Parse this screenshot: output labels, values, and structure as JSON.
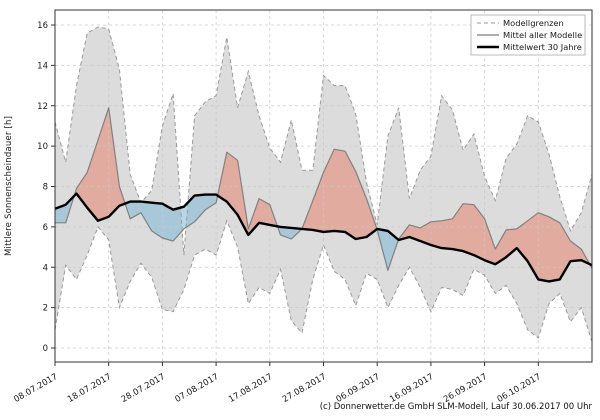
{
  "figure": {
    "ylabel": "Mittlere Sonnenscheindauer [h]",
    "caption": "(c) Donnerwetter.de GmbH SLM-Modell, Lauf 30.06.2017 00 Uhr"
  },
  "legend": {
    "position": "top-right",
    "items": [
      {
        "label": "Modellgrenzen",
        "style": "dashed-gray"
      },
      {
        "label": "Mittel aller Modelle",
        "style": "solid-gray"
      },
      {
        "label": "Mittelwert 30 Jahre",
        "style": "solid-black-thick"
      }
    ]
  },
  "colors": {
    "band_fill": "#dcdcdc",
    "band_edge": "#999999",
    "model_mean_line": "#808080",
    "mean30_line": "#000000",
    "above_fill": "#e8846e",
    "below_fill": "#7db8d8",
    "grid": "#c8c8c8",
    "axis": "#333333",
    "text": "#1a1a1a",
    "legend_border": "#bbbbbb",
    "legend_bg": "#ffffff"
  },
  "chart_data": {
    "type": "line",
    "title": "",
    "xlabel": "",
    "ylabel": "Mittlere Sonnenscheindauer [h]",
    "ylim": [
      0,
      16
    ],
    "grid": true,
    "grid_style": "dashed",
    "legend_position": "top-right",
    "x_start_date": "08.07.2017",
    "x_step_days": 2,
    "x_days": [
      0,
      2,
      4,
      6,
      8,
      10,
      12,
      14,
      16,
      18,
      20,
      22,
      24,
      26,
      28,
      30,
      32,
      34,
      36,
      38,
      40,
      42,
      44,
      46,
      48,
      50,
      52,
      54,
      56,
      58,
      60,
      62,
      64,
      66,
      68,
      70,
      72,
      74,
      76,
      78,
      80,
      82,
      84,
      86,
      88,
      90,
      92,
      94,
      96,
      98,
      100
    ],
    "x_tick_days": [
      0,
      10,
      20,
      30,
      40,
      50,
      60,
      70,
      80,
      90
    ],
    "x_tick_labels": [
      "08.07.2017",
      "18.07.2017",
      "28.07.2017",
      "07.08.2017",
      "17.08.2017",
      "27.08.2017",
      "06.09.2017",
      "16.09.2017",
      "26.09.2017",
      "06.10.2017"
    ],
    "y_ticks": [
      0,
      2,
      4,
      6,
      8,
      10,
      12,
      14,
      16
    ],
    "series": [
      {
        "name": "Modellgrenzen obere Grenze",
        "role": "band_upper",
        "values": [
          11.2,
          9.2,
          13.0,
          15.6,
          15.9,
          15.8,
          13.8,
          8.6,
          7.2,
          7.8,
          11.0,
          12.6,
          4.6,
          11.5,
          12.2,
          12.5,
          15.4,
          11.9,
          13.7,
          11.5,
          9.9,
          9.2,
          11.3,
          8.8,
          8.8,
          13.5,
          13.0,
          13.0,
          11.6,
          8.2,
          6.1,
          10.5,
          11.9,
          7.4,
          8.8,
          9.5,
          12.5,
          11.8,
          9.8,
          10.6,
          8.5,
          7.3,
          9.4,
          10.1,
          11.5,
          11.2,
          9.6,
          7.5,
          5.8,
          6.7,
          8.6
        ]
      },
      {
        "name": "Modellgrenzen untere Grenze",
        "role": "band_lower",
        "values": [
          0.9,
          4.1,
          3.4,
          4.6,
          6.0,
          5.35,
          2.0,
          3.3,
          4.2,
          3.5,
          1.9,
          1.8,
          2.9,
          4.6,
          4.9,
          4.6,
          6.3,
          5.0,
          2.2,
          3.0,
          2.7,
          3.9,
          1.35,
          0.75,
          3.4,
          5.1,
          3.8,
          3.4,
          2.1,
          3.7,
          3.4,
          2.0,
          3.1,
          4.0,
          3.0,
          1.8,
          3.0,
          2.9,
          2.6,
          3.9,
          3.6,
          2.7,
          3.1,
          2.2,
          0.9,
          0.5,
          2.2,
          2.7,
          1.3,
          2.0,
          0.3
        ]
      },
      {
        "name": "Mittel aller Modelle",
        "role": "model_mean",
        "values": [
          6.2,
          6.2,
          7.9,
          8.7,
          10.3,
          11.9,
          8.0,
          6.4,
          6.7,
          5.8,
          5.45,
          5.3,
          5.9,
          6.25,
          6.85,
          7.2,
          9.7,
          9.3,
          5.9,
          7.4,
          7.1,
          5.6,
          5.4,
          5.9,
          7.3,
          8.7,
          9.85,
          9.75,
          8.75,
          7.4,
          5.85,
          3.85,
          5.4,
          6.1,
          5.95,
          6.25,
          6.3,
          6.4,
          7.15,
          7.1,
          6.4,
          4.9,
          5.85,
          5.9,
          6.3,
          6.7,
          6.5,
          6.2,
          5.3,
          4.9,
          3.95
        ]
      },
      {
        "name": "Mittelwert 30 Jahre",
        "role": "mean_30y",
        "values": [
          6.9,
          7.1,
          7.65,
          6.95,
          6.3,
          6.5,
          7.05,
          7.25,
          7.25,
          7.2,
          7.15,
          6.85,
          7.0,
          7.55,
          7.6,
          7.6,
          7.25,
          6.6,
          5.6,
          6.2,
          6.1,
          6.0,
          5.95,
          5.9,
          5.85,
          5.75,
          5.8,
          5.75,
          5.4,
          5.5,
          5.9,
          5.8,
          5.35,
          5.5,
          5.3,
          5.1,
          4.95,
          4.9,
          4.8,
          4.6,
          4.35,
          4.15,
          4.5,
          4.95,
          4.3,
          3.4,
          3.3,
          3.4,
          4.3,
          4.35,
          4.1
        ]
      }
    ],
    "annotations": {
      "fill_above_meaning": "Mittel aller Modelle liegt ueber dem 30-jaehrigen Mittel (rot)",
      "fill_below_meaning": "Mittel aller Modelle liegt unter dem 30-jaehrigen Mittel (blau)"
    }
  }
}
